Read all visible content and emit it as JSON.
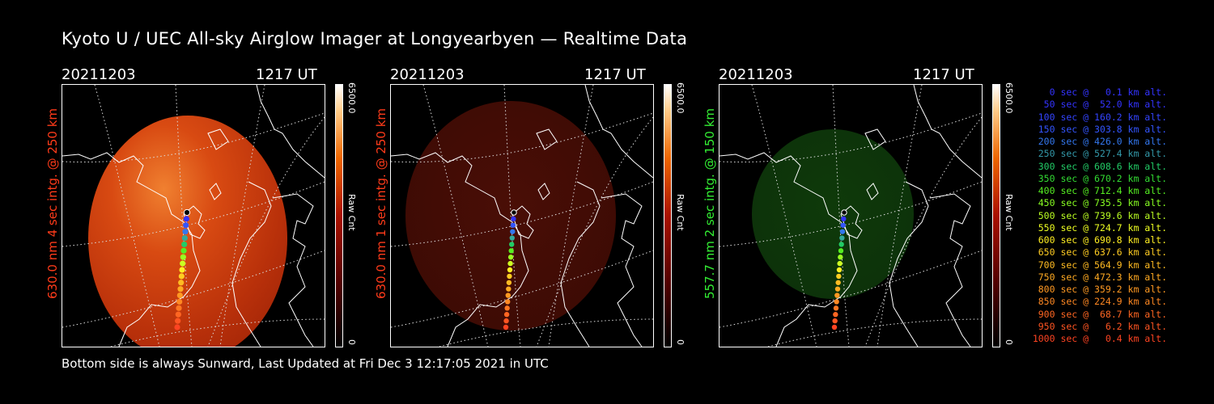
{
  "title": "Kyoto U / UEC All-sky Airglow Imager at Longyearbyen — Realtime Data",
  "footer": "Bottom side is always Sunward, Last Updated at Fri Dec  3 12:17:05 2021 in UTC",
  "colors": {
    "red_label": "#ff3b1a",
    "green_label": "#33ee33"
  },
  "panels": [
    {
      "date": "20211203",
      "time": "1217 UT",
      "label": "630.0 nm 4 sec intg. @ 250 km",
      "label_color": "#ff3b1a",
      "colorbar_max": "6500.0",
      "colorbar_unit": "Raw Cnt",
      "colorbar_min": "0",
      "image_tone": "bright-red"
    },
    {
      "date": "20211203",
      "time": "1217 UT",
      "label": "630.0 nm 1 sec intg. @ 250 km",
      "label_color": "#ff3b1a",
      "colorbar_max": "6500.0",
      "colorbar_unit": "Raw Cnt",
      "colorbar_min": "0",
      "image_tone": "dim-red"
    },
    {
      "date": "20211203",
      "time": "1217 UT",
      "label": "557.7 nm 2 sec intg. @ 150 km",
      "label_color": "#33ee33",
      "colorbar_max": "6500.0",
      "colorbar_unit": "Raw Cnt",
      "colorbar_min": "0",
      "image_tone": "dim-green"
    }
  ],
  "legend": [
    {
      "text": "0 sec @   0.1 km alt.",
      "color": "#3333ff"
    },
    {
      "text": "50 sec @  52.0 km alt.",
      "color": "#3333ff"
    },
    {
      "text": "100 sec @ 160.2 km alt.",
      "color": "#3344ff"
    },
    {
      "text": "150 sec @ 303.8 km alt.",
      "color": "#3355ff"
    },
    {
      "text": "200 sec @ 426.0 km alt.",
      "color": "#3377ee"
    },
    {
      "text": "250 sec @ 527.4 km alt.",
      "color": "#3399aa"
    },
    {
      "text": "300 sec @ 608.6 km alt.",
      "color": "#22cc66"
    },
    {
      "text": "350 sec @ 670.2 km alt.",
      "color": "#33dd33"
    },
    {
      "text": "400 sec @ 712.4 km alt.",
      "color": "#55ee22"
    },
    {
      "text": "450 sec @ 735.5 km alt.",
      "color": "#88ff22"
    },
    {
      "text": "500 sec @ 739.6 km alt.",
      "color": "#bbff22"
    },
    {
      "text": "550 sec @ 724.7 km alt.",
      "color": "#eeff22"
    },
    {
      "text": "600 sec @ 690.8 km alt.",
      "color": "#ffee22"
    },
    {
      "text": "650 sec @ 637.6 km alt.",
      "color": "#ffcc22"
    },
    {
      "text": "700 sec @ 564.9 km alt.",
      "color": "#ffbb22"
    },
    {
      "text": "750 sec @ 472.3 km alt.",
      "color": "#ffaa22"
    },
    {
      "text": "800 sec @ 359.2 km alt.",
      "color": "#ff9922"
    },
    {
      "text": "850 sec @ 224.9 km alt.",
      "color": "#ff8822"
    },
    {
      "text": "900 sec @  68.7 km alt.",
      "color": "#ff6622"
    },
    {
      "text": "950 sec @   6.2 km alt.",
      "color": "#ff5522"
    },
    {
      "text": "1000 sec @   0.4 km alt.",
      "color": "#ff4422"
    }
  ]
}
